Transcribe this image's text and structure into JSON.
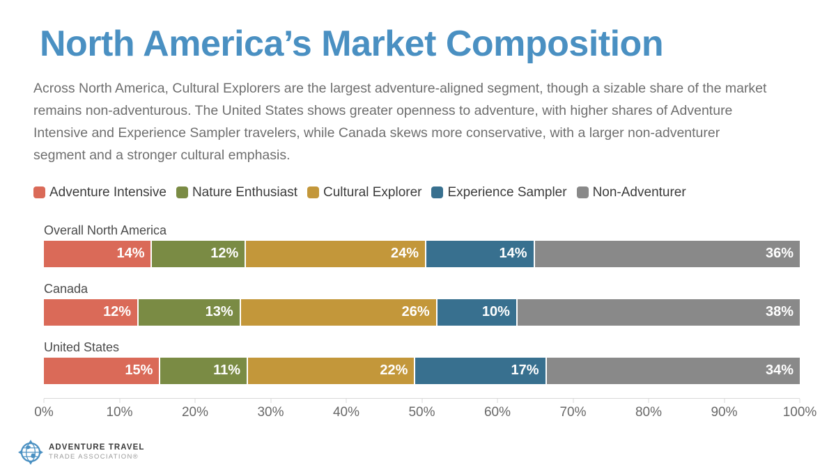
{
  "title": "North America’s Market Composition",
  "description": "Across North America, Cultural Explorers are the largest adventure-aligned segment, though a sizable share of the market remains non-adventurous. The United States shows greater openness to adventure, with higher shares of Adventure Intensive and Experience Sampler travelers, while Canada skews more conservative, with a larger non-adventurer segment and a stronger cultural emphasis.",
  "colors": {
    "title_blue": "#4a90c2",
    "adventure_intensive": "#da6a58",
    "nature_enthusiast": "#7a8b44",
    "cultural_explorer": "#c3973a",
    "experience_sampler": "#38708f",
    "non_adventurer": "#898989",
    "body_text": "#6e6e6e"
  },
  "chart_data": {
    "type": "bar",
    "orientation": "horizontal_stacked",
    "title": "North America’s Market Composition",
    "categories": [
      "Overall North America",
      "Canada",
      "United States"
    ],
    "series": [
      {
        "name": "Adventure Intensive",
        "color": "#da6a58",
        "values": [
          14,
          12,
          15
        ]
      },
      {
        "name": "Nature Enthusiast",
        "color": "#7a8b44",
        "values": [
          12,
          13,
          11
        ]
      },
      {
        "name": "Cultural Explorer",
        "color": "#c3973a",
        "values": [
          24,
          26,
          22
        ]
      },
      {
        "name": "Experience Sampler",
        "color": "#38708f",
        "values": [
          14,
          10,
          17
        ]
      },
      {
        "name": "Non-Adventurer",
        "color": "#898989",
        "values": [
          36,
          38,
          34
        ]
      }
    ],
    "value_suffix": "%",
    "x_axis": {
      "min": 0,
      "max": 100,
      "ticks": [
        "0%",
        "10%",
        "20%",
        "30%",
        "40%",
        "50%",
        "60%",
        "70%",
        "80%",
        "90%",
        "100%"
      ]
    },
    "legend_position": "top",
    "grid": false
  },
  "logo": {
    "line1": "ADVENTURE TRAVEL",
    "line2": "TRADE ASSOCIATION®",
    "icon": "globe-compass-icon"
  }
}
